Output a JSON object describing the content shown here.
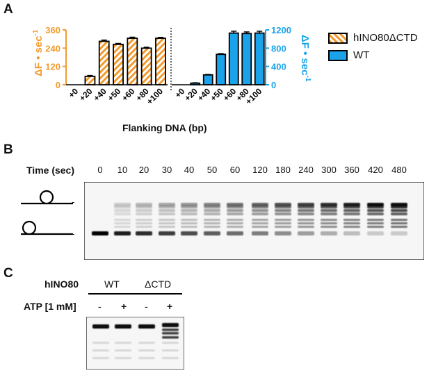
{
  "panel_labels": {
    "a": "A",
    "b": "B",
    "c": "C"
  },
  "colors": {
    "orange": "#f39a2c",
    "blue": "#1aa3ea",
    "bar_dark": "#000000"
  },
  "chart_data": [
    {
      "type": "bar",
      "categories": [
        "+0",
        "+20",
        "+40",
        "+50",
        "+60",
        "+80",
        "+100"
      ],
      "series": [
        {
          "name": "hINO80ΔCTD",
          "values": [
            0,
            55,
            285,
            265,
            305,
            240,
            305
          ],
          "errors": [
            0,
            6,
            8,
            6,
            7,
            6,
            6
          ],
          "pattern": "orange-hatch"
        }
      ],
      "ylabel": "ΔF • sec-1",
      "ylim": [
        0,
        360
      ],
      "yticks": [
        "0",
        "120",
        "240",
        "360"
      ],
      "ytick_values": [
        0,
        120,
        240,
        360
      ],
      "axis_color": "#f39a2c"
    },
    {
      "type": "bar",
      "categories": [
        "+0",
        "+20",
        "+40",
        "+50",
        "+60",
        "+80",
        "+100"
      ],
      "series": [
        {
          "name": "WT",
          "values": [
            0,
            35,
            215,
            665,
            1130,
            1120,
            1130
          ],
          "errors": [
            0,
            8,
            10,
            15,
            40,
            35,
            40
          ],
          "pattern": "blue"
        }
      ],
      "ylabel": "ΔF • sec-1",
      "ylim": [
        0,
        1200
      ],
      "yticks": [
        "0",
        "400",
        "800",
        "1200"
      ],
      "ytick_values": [
        0,
        400,
        800,
        1200
      ],
      "axis_color": "#1aa3ea"
    }
  ],
  "panelA": {
    "xlabel": "Flanking DNA (bp)",
    "legend": [
      {
        "label": "hINO80ΔCTD"
      },
      {
        "label": "WT"
      }
    ]
  },
  "panelB": {
    "time_header": "Time (sec)",
    "times": [
      "0",
      "10",
      "20",
      "30",
      "40",
      "50",
      "60",
      "120",
      "180",
      "240",
      "300",
      "360",
      "420",
      "480"
    ],
    "marker_dash": "-"
  },
  "panelC": {
    "row_hino80": "hINO80",
    "row_atp": "ATP [1 mM]",
    "groups": [
      "WT",
      "ΔCTD"
    ],
    "atp_marks": [
      "-",
      "+",
      "-",
      "+"
    ]
  }
}
